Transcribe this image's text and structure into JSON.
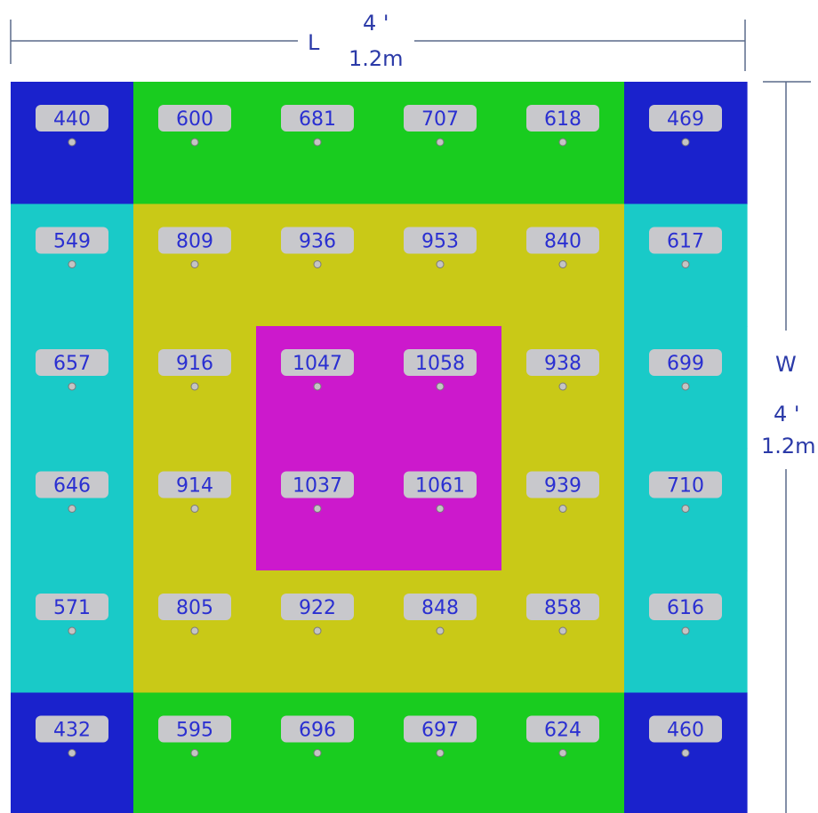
{
  "chart_data": {
    "type": "heatmap",
    "length": {
      "axis": "L",
      "feet": "4 '",
      "meters": "1.2m"
    },
    "width": {
      "axis": "W",
      "feet": "4 '",
      "meters": "1.2m"
    },
    "rows": 6,
    "cols": 6,
    "values": [
      [
        440,
        600,
        681,
        707,
        618,
        469
      ],
      [
        549,
        809,
        936,
        953,
        840,
        617
      ],
      [
        657,
        916,
        1047,
        1058,
        938,
        699
      ],
      [
        646,
        914,
        1037,
        1061,
        939,
        710
      ],
      [
        571,
        805,
        922,
        848,
        858,
        616
      ],
      [
        432,
        595,
        696,
        697,
        624,
        460
      ]
    ],
    "zone_colors": [
      "#1a22cc",
      "#19cc1f",
      "#19cac8",
      "#c9c917",
      "#cc19cc"
    ],
    "zones": [
      [
        0,
        1,
        1,
        1,
        1,
        0
      ],
      [
        2,
        3,
        3,
        3,
        3,
        2
      ],
      [
        2,
        3,
        4,
        4,
        3,
        2
      ],
      [
        2,
        3,
        4,
        4,
        3,
        2
      ],
      [
        2,
        3,
        3,
        3,
        3,
        2
      ],
      [
        0,
        1,
        1,
        1,
        1,
        0
      ]
    ]
  }
}
